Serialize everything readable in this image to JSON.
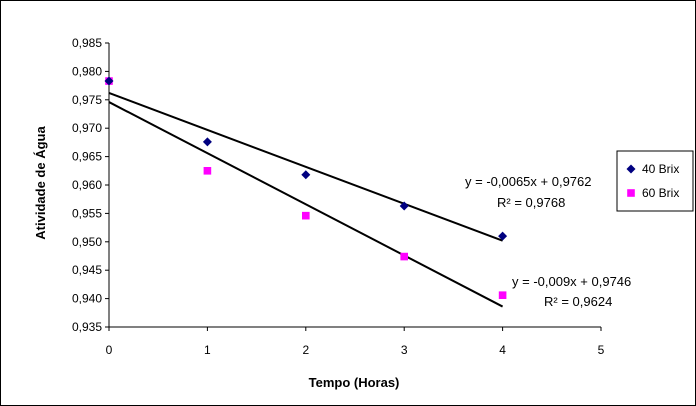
{
  "chart_data": {
    "type": "scatter",
    "xlabel": "Tempo (Horas)",
    "ylabel": "Atividade de Água",
    "xlim": [
      0,
      5
    ],
    "ylim": [
      0.935,
      0.985
    ],
    "x_ticks": [
      "0",
      "1",
      "2",
      "3",
      "4",
      "5"
    ],
    "y_ticks": [
      "0,935",
      "0,940",
      "0,945",
      "0,950",
      "0,955",
      "0,960",
      "0,965",
      "0,970",
      "0,975",
      "0,980",
      "0,985"
    ],
    "grid": false,
    "legend_position": "right",
    "series": [
      {
        "name": "40 Brix",
        "marker": "diamond",
        "color": "#000080",
        "x": [
          0,
          1,
          2,
          3,
          4
        ],
        "y": [
          0.9783,
          0.9676,
          0.9618,
          0.9563,
          0.951
        ],
        "trendline": {
          "slope": -0.0065,
          "intercept": 0.9762
        },
        "equation": "y = -0,0065x + 0,9762",
        "r2": "R² = 0,9768"
      },
      {
        "name": "60 Brix",
        "marker": "square",
        "color": "#ff00ff",
        "x": [
          0,
          1,
          2,
          3,
          4
        ],
        "y": [
          0.9783,
          0.9625,
          0.9546,
          0.9474,
          0.9406
        ],
        "trendline": {
          "slope": -0.009,
          "intercept": 0.9746
        },
        "equation": "y = -0,009x + 0,9746",
        "r2": "R² = 0,9624"
      }
    ]
  }
}
